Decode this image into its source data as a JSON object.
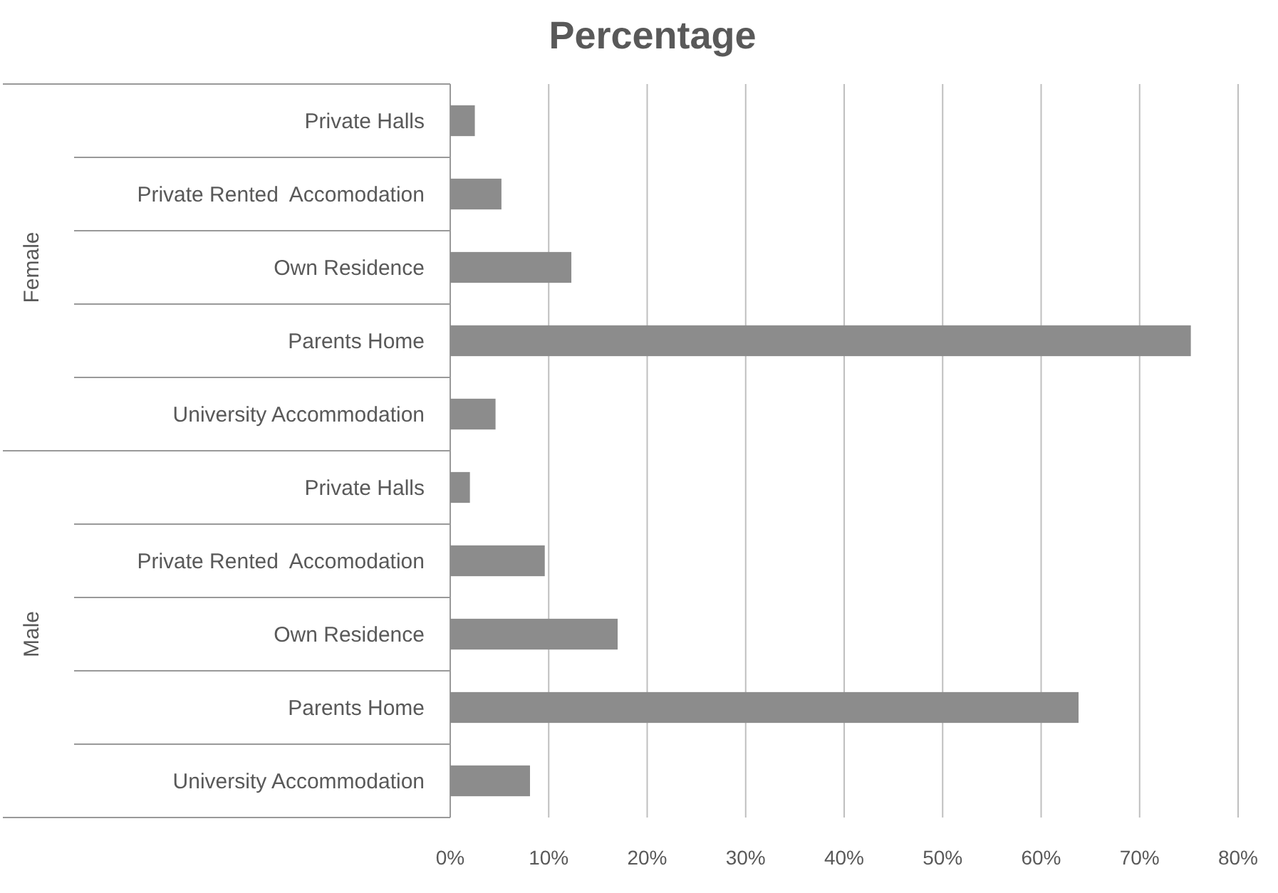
{
  "chart_data": {
    "type": "bar",
    "orientation": "horizontal",
    "title": "Percentage",
    "categories": [
      "Private Halls",
      "Private Rented  Accomodation",
      "Own Residence",
      "Parents Home",
      "University Accommodation",
      "Private Halls",
      "Private Rented  Accomodation",
      "Own Residence",
      "Parents Home",
      "University Accommodation"
    ],
    "values": [
      2.5,
      5.2,
      12.3,
      75.2,
      4.6,
      2.0,
      9.6,
      17.0,
      63.8,
      8.1
    ],
    "color": "#8c8c8c",
    "xlim": [
      0,
      80
    ],
    "xticks": [
      {
        "value": 0,
        "label": "0%"
      },
      {
        "value": 10,
        "label": "10%"
      },
      {
        "value": 20,
        "label": "20%"
      },
      {
        "value": 30,
        "label": "30%"
      },
      {
        "value": 40,
        "label": "40%"
      },
      {
        "value": 50,
        "label": "50%"
      },
      {
        "value": 60,
        "label": "60%"
      },
      {
        "value": 70,
        "label": "70%"
      },
      {
        "value": 80,
        "label": "80%"
      }
    ],
    "grid": "x",
    "annotations": [
      "Female",
      "Male"
    ]
  }
}
